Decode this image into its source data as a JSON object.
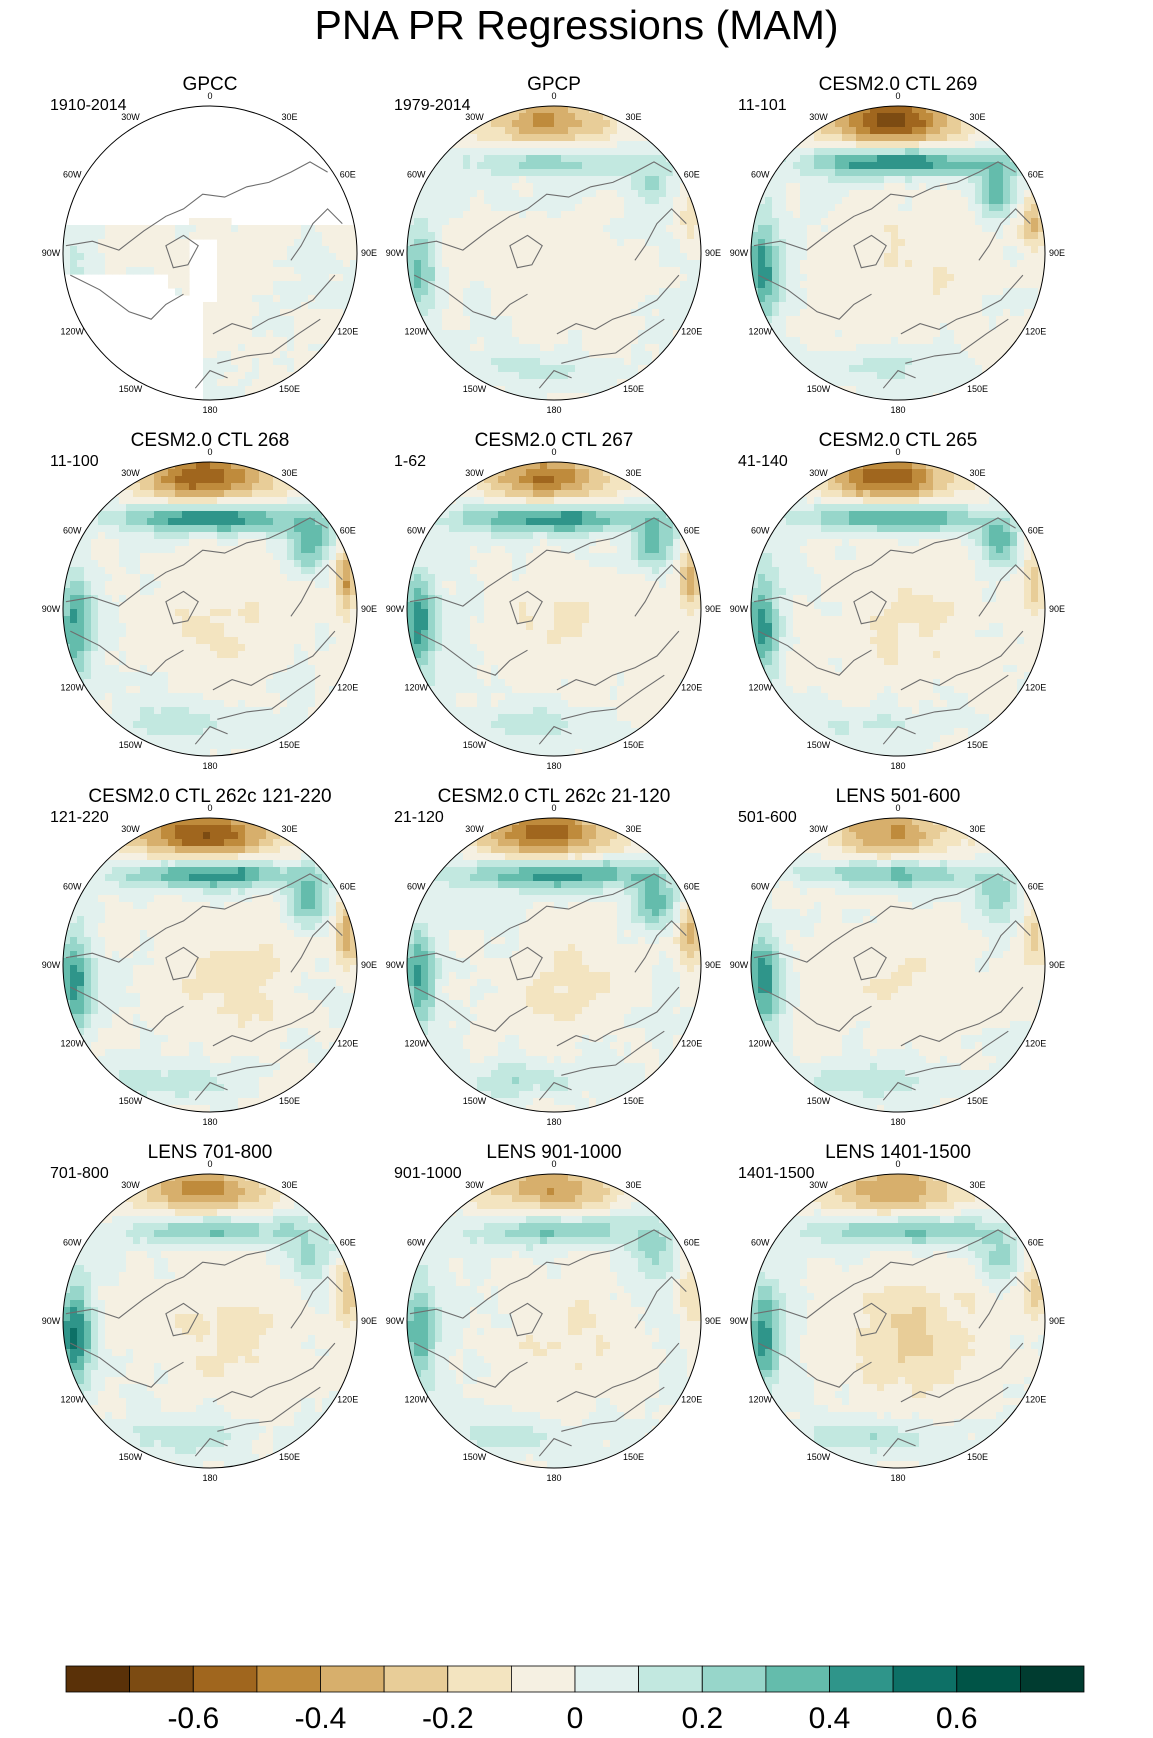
{
  "title": "PNA PR Regressions (MAM)",
  "chart_data": {
    "type": "heatmap",
    "projection": "north-polar-stereographic",
    "title": "PNA PR Regressions (MAM)",
    "season": "MAM",
    "variable": "PR",
    "longitude_labels": [
      "180",
      "150E",
      "120E",
      "90E",
      "60E",
      "30E",
      "0",
      "30W",
      "60W",
      "90W",
      "120W",
      "150W"
    ],
    "panels": [
      {
        "title": "GPCC",
        "period": "1910-2014",
        "pattern": {
          "aleutian_dry": 0.05,
          "pacific_wet": 0.05,
          "westcoast_wet": 0.12,
          "asia_dry": 0.05,
          "europe_wet": 0.04,
          "arctic_dry": 0.04,
          "missing_ocean": true
        }
      },
      {
        "title": "GPCP",
        "period": "1979-2014",
        "pattern": {
          "aleutian_dry": 0.4,
          "pacific_wet": 0.26,
          "westcoast_wet": 0.3,
          "asia_dry": 0.12,
          "europe_wet": 0.12,
          "arctic_dry": 0.06,
          "missing_ocean": false
        }
      },
      {
        "title": "CESM2.0 CTL 269",
        "period": "11-101",
        "pattern": {
          "aleutian_dry": 0.65,
          "pacific_wet": 0.55,
          "westcoast_wet": 0.45,
          "asia_dry": 0.32,
          "europe_wet": 0.14,
          "arctic_dry": 0.1,
          "missing_ocean": false
        }
      },
      {
        "title": "CESM2.0 CTL 268",
        "period": "11-100",
        "pattern": {
          "aleutian_dry": 0.6,
          "pacific_wet": 0.55,
          "westcoast_wet": 0.42,
          "asia_dry": 0.4,
          "europe_wet": 0.18,
          "arctic_dry": 0.12,
          "missing_ocean": false
        }
      },
      {
        "title": "CESM2.0 CTL 267",
        "period": "1-62",
        "pattern": {
          "aleutian_dry": 0.5,
          "pacific_wet": 0.52,
          "westcoast_wet": 0.45,
          "asia_dry": 0.38,
          "europe_wet": 0.15,
          "arctic_dry": 0.12,
          "missing_ocean": false
        }
      },
      {
        "title": "CESM2.0 CTL 265",
        "period": "41-140",
        "pattern": {
          "aleutian_dry": 0.55,
          "pacific_wet": 0.45,
          "westcoast_wet": 0.45,
          "asia_dry": 0.3,
          "europe_wet": 0.14,
          "arctic_dry": 0.12,
          "missing_ocean": false
        }
      },
      {
        "title": "CESM2.0 CTL 262c 121-220",
        "period": "121-220",
        "pattern": {
          "aleutian_dry": 0.62,
          "pacific_wet": 0.5,
          "westcoast_wet": 0.45,
          "asia_dry": 0.4,
          "europe_wet": 0.16,
          "arctic_dry": 0.14,
          "missing_ocean": false
        }
      },
      {
        "title": "CESM2.0 CTL 262c 21-120",
        "period": "21-120",
        "pattern": {
          "aleutian_dry": 0.55,
          "pacific_wet": 0.5,
          "westcoast_wet": 0.42,
          "asia_dry": 0.3,
          "europe_wet": 0.18,
          "arctic_dry": 0.12,
          "missing_ocean": false
        }
      },
      {
        "title": "LENS 501-600",
        "period": "501-600",
        "pattern": {
          "aleutian_dry": 0.4,
          "pacific_wet": 0.35,
          "westcoast_wet": 0.45,
          "asia_dry": 0.25,
          "europe_wet": 0.2,
          "arctic_dry": 0.1,
          "missing_ocean": false
        }
      },
      {
        "title": "LENS 701-800",
        "period": "701-800",
        "pattern": {
          "aleutian_dry": 0.45,
          "pacific_wet": 0.35,
          "westcoast_wet": 0.5,
          "asia_dry": 0.3,
          "europe_wet": 0.18,
          "arctic_dry": 0.14,
          "missing_ocean": false
        }
      },
      {
        "title": "LENS 901-1000",
        "period": "901-1000",
        "pattern": {
          "aleutian_dry": 0.38,
          "pacific_wet": 0.32,
          "westcoast_wet": 0.38,
          "asia_dry": 0.2,
          "europe_wet": 0.14,
          "arctic_dry": 0.1,
          "missing_ocean": false
        }
      },
      {
        "title": "LENS 1401-1500",
        "period": "1401-1500",
        "pattern": {
          "aleutian_dry": 0.4,
          "pacific_wet": 0.35,
          "westcoast_wet": 0.48,
          "asia_dry": 0.25,
          "europe_wet": 0.2,
          "arctic_dry": 0.22,
          "missing_ocean": false
        }
      }
    ],
    "colorbar": {
      "levels": [
        -0.7,
        -0.6,
        -0.5,
        -0.4,
        -0.3,
        -0.2,
        -0.1,
        0,
        0.1,
        0.2,
        0.3,
        0.4,
        0.5,
        0.6,
        0.7
      ],
      "colors": [
        "#5a3108",
        "#7c4b12",
        "#a0661e",
        "#bf8b3c",
        "#d7af6c",
        "#e8cd98",
        "#f3e4c0",
        "#f5f0e2",
        "#e2f1ee",
        "#c2e8e0",
        "#97d6ca",
        "#64bcac",
        "#2f958a",
        "#0d7066",
        "#005447",
        "#003c30"
      ],
      "tick_labels": [
        "-0.6",
        "-0.4",
        "-0.2",
        "0",
        "0.2",
        "0.4",
        "0.6"
      ],
      "tick_values": [
        -0.6,
        -0.4,
        -0.2,
        0,
        0.2,
        0.4,
        0.6
      ]
    }
  }
}
